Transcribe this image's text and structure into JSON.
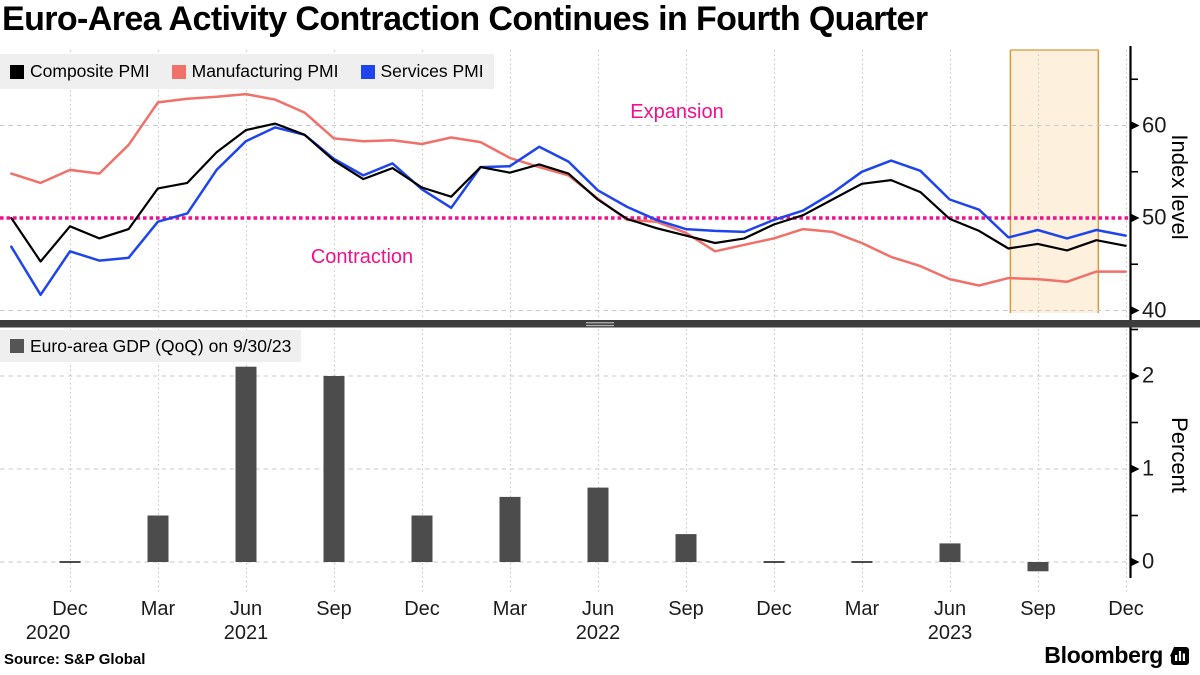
{
  "title": "Euro-Area Activity Contraction Continues in Fourth Quarter",
  "source": "Source: S&P Global",
  "brand": "Bloomberg",
  "colors": {
    "composite": "#000000",
    "manufacturing": "#f0706a",
    "services": "#1e45ec",
    "magenta": "#ef118d",
    "band_fill": "#fdf0dc",
    "band_border": "#d59a3e",
    "bar": "#4c4c4c",
    "legend_bg": "#efefef",
    "grid": "#c9c9c9",
    "separator": "#3d3d3d"
  },
  "legends": {
    "top": [
      {
        "label": "Composite PMI",
        "color": "#000000"
      },
      {
        "label": "Manufacturing PMI",
        "color": "#f0706a"
      },
      {
        "label": "Services PMI",
        "color": "#1e45ec"
      }
    ],
    "bottom": [
      {
        "label": "Euro-area GDP (QoQ) on 9/30/23",
        "color": "#555555"
      }
    ]
  },
  "annotations": {
    "expansion": "Expansion",
    "contraction": "Contraction"
  },
  "chart_data": [
    {
      "type": "line",
      "panel": "top",
      "ylabel": "Index level",
      "ylim": [
        39.5,
        68
      ],
      "yticks_major": [
        40,
        50,
        60
      ],
      "yticks_minor": [
        45,
        55,
        65
      ],
      "grid": true,
      "legend_position": "top-left",
      "reference_line": {
        "value": 50,
        "style": "dotted",
        "color": "#ef118d"
      },
      "zone_labels": {
        "above": "Expansion",
        "below": "Contraction"
      },
      "highlight_band": {
        "note": "fourth-quarter highlight",
        "start_index": 34,
        "end_index": 37
      },
      "x_start_month": "2020-10",
      "x_end_month": "2023-12",
      "x_tick_quarters": [
        {
          "month": "Dec",
          "year": "2020"
        },
        {
          "month": "Mar"
        },
        {
          "month": "Jun",
          "year": "2021"
        },
        {
          "month": "Sep"
        },
        {
          "month": "Dec"
        },
        {
          "month": "Mar"
        },
        {
          "month": "Jun",
          "year": "2022"
        },
        {
          "month": "Sep"
        },
        {
          "month": "Dec"
        },
        {
          "month": "Mar"
        },
        {
          "month": "Jun",
          "year": "2023"
        },
        {
          "month": "Sep"
        },
        {
          "month": "Dec"
        }
      ],
      "series": [
        {
          "name": "Composite PMI",
          "color": "#000000",
          "values": [
            50.0,
            45.3,
            49.1,
            47.8,
            48.8,
            53.2,
            53.8,
            57.1,
            59.5,
            60.2,
            59.0,
            56.2,
            54.2,
            55.4,
            53.3,
            52.3,
            55.5,
            54.9,
            55.8,
            54.8,
            52.0,
            49.9,
            48.9,
            48.1,
            47.3,
            47.8,
            49.3,
            50.3,
            52.0,
            53.7,
            54.1,
            52.8,
            49.9,
            48.6,
            46.7,
            47.2,
            46.5,
            47.6,
            47.0
          ]
        },
        {
          "name": "Manufacturing PMI",
          "color": "#f0706a",
          "values": [
            54.8,
            53.8,
            55.2,
            54.8,
            57.9,
            62.5,
            62.9,
            63.1,
            63.4,
            62.8,
            61.4,
            58.6,
            58.3,
            58.4,
            58.0,
            58.7,
            58.2,
            56.5,
            55.5,
            54.6,
            52.1,
            49.8,
            49.6,
            48.4,
            46.4,
            47.1,
            47.8,
            48.8,
            48.5,
            47.3,
            45.8,
            44.8,
            43.4,
            42.7,
            43.5,
            43.4,
            43.1,
            44.2,
            44.2
          ]
        },
        {
          "name": "Services PMI",
          "color": "#1e45ec",
          "values": [
            46.9,
            41.7,
            46.4,
            45.4,
            45.7,
            49.6,
            50.5,
            55.2,
            58.3,
            59.8,
            59.0,
            56.4,
            54.6,
            55.9,
            53.1,
            51.1,
            55.5,
            55.6,
            57.7,
            56.1,
            53.0,
            51.2,
            49.8,
            48.8,
            48.6,
            48.5,
            49.8,
            50.8,
            52.7,
            55.0,
            56.2,
            55.1,
            52.0,
            50.9,
            47.9,
            48.7,
            47.8,
            48.7,
            48.1
          ]
        }
      ]
    },
    {
      "type": "bar",
      "panel": "bottom",
      "name": "Euro-area GDP (QoQ) on 9/30/23",
      "ylabel": "Percent",
      "ylim": [
        -0.2,
        2.5
      ],
      "yticks_major": [
        0,
        1,
        2
      ],
      "yticks_minor": [
        0.5,
        1.5,
        2.5
      ],
      "bar_color": "#4c4c4c",
      "categories": [
        "Q4 2020",
        "Q1 2021",
        "Q2 2021",
        "Q3 2021",
        "Q4 2021",
        "Q1 2022",
        "Q2 2022",
        "Q3 2022",
        "Q4 2022",
        "Q1 2023",
        "Q2 2023",
        "Q3 2023",
        "Q4 2023"
      ],
      "values": [
        0.0,
        0.5,
        2.1,
        2.0,
        0.5,
        0.7,
        0.8,
        0.3,
        0.0,
        0.0,
        0.2,
        -0.1,
        null
      ]
    }
  ]
}
